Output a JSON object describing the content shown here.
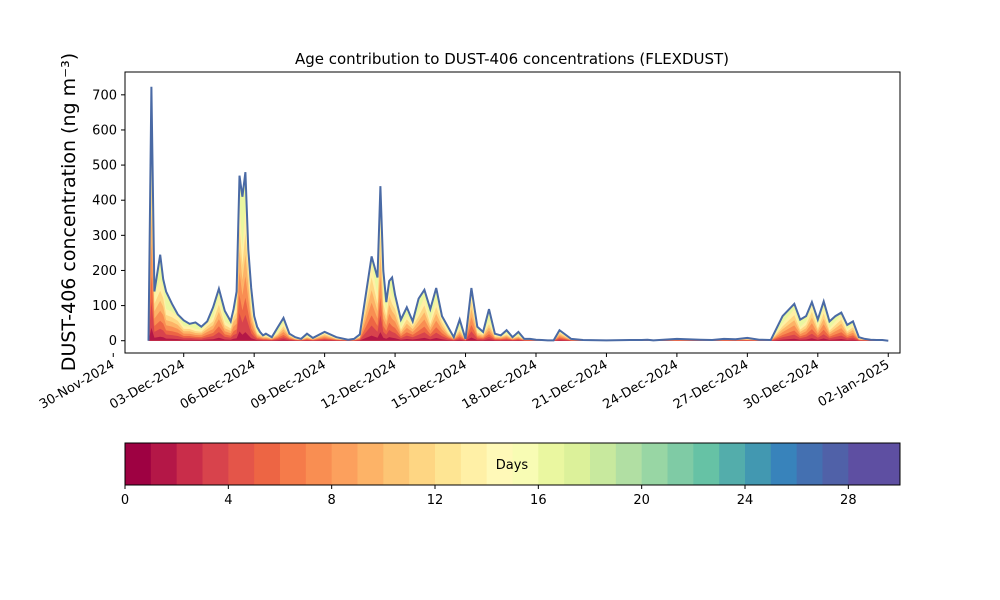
{
  "chart_data": {
    "type": "area",
    "title": "Age contribution to DUST-406 concentrations (FLEXDUST)",
    "ylabel": "DUST-406 concentration (ng m⁻³)",
    "xlabel": "",
    "ylim": [
      -35,
      765
    ],
    "xlim": [
      "2024-11-30T12:00",
      "2025-01-02T12:00"
    ],
    "x_ticks": [
      "30-Nov-2024",
      "03-Dec-2024",
      "06-Dec-2024",
      "09-Dec-2024",
      "12-Dec-2024",
      "15-Dec-2024",
      "18-Dec-2024",
      "21-Dec-2024",
      "24-Dec-2024",
      "27-Dec-2024",
      "30-Dec-2024",
      "02-Jan-2025"
    ],
    "y_ticks": [
      0,
      100,
      200,
      300,
      400,
      500,
      600,
      700
    ],
    "grid": false,
    "outline_color": "#4a6aa5",
    "total_series": {
      "x": [
        "2024-12-01T12:00",
        "2024-12-01T15:00",
        "2024-12-01T18:00",
        "2024-12-02T00:00",
        "2024-12-02T03:00",
        "2024-12-02T06:00",
        "2024-12-02T12:00",
        "2024-12-02T18:00",
        "2024-12-03T00:00",
        "2024-12-03T06:00",
        "2024-12-03T12:00",
        "2024-12-03T18:00",
        "2024-12-04T00:00",
        "2024-12-04T06:00",
        "2024-12-04T12:00",
        "2024-12-04T18:00",
        "2024-12-05T00:00",
        "2024-12-05T03:00",
        "2024-12-05T06:00",
        "2024-12-05T09:00",
        "2024-12-05T12:00",
        "2024-12-05T15:00",
        "2024-12-05T18:00",
        "2024-12-05T21:00",
        "2024-12-06T00:00",
        "2024-12-06T03:00",
        "2024-12-06T06:00",
        "2024-12-06T09:00",
        "2024-12-06T12:00",
        "2024-12-06T18:00",
        "2024-12-07T00:00",
        "2024-12-07T06:00",
        "2024-12-07T12:00",
        "2024-12-07T18:00",
        "2024-12-08T00:00",
        "2024-12-08T06:00",
        "2024-12-08T12:00",
        "2024-12-09T00:00",
        "2024-12-09T12:00",
        "2024-12-10T00:00",
        "2024-12-10T06:00",
        "2024-12-10T12:00",
        "2024-12-11T00:00",
        "2024-12-11T06:00",
        "2024-12-11T09:00",
        "2024-12-11T12:00",
        "2024-12-11T15:00",
        "2024-12-11T18:00",
        "2024-12-11T21:00",
        "2024-12-12T00:00",
        "2024-12-12T06:00",
        "2024-12-12T12:00",
        "2024-12-12T18:00",
        "2024-12-13T00:00",
        "2024-12-13T06:00",
        "2024-12-13T12:00",
        "2024-12-13T18:00",
        "2024-12-14T00:00",
        "2024-12-14T06:00",
        "2024-12-14T12:00",
        "2024-12-14T18:00",
        "2024-12-15T00:00",
        "2024-12-15T06:00",
        "2024-12-15T12:00",
        "2024-12-15T18:00",
        "2024-12-16T00:00",
        "2024-12-16T06:00",
        "2024-12-16T12:00",
        "2024-12-16T18:00",
        "2024-12-17T00:00",
        "2024-12-17T06:00",
        "2024-12-17T12:00",
        "2024-12-17T18:00",
        "2024-12-18T00:00",
        "2024-12-18T06:00",
        "2024-12-18T12:00",
        "2024-12-18T18:00",
        "2024-12-19T00:00",
        "2024-12-19T12:00",
        "2024-12-20T00:00",
        "2024-12-21T00:00",
        "2024-12-22T00:00",
        "2024-12-22T12:00",
        "2024-12-22T18:00",
        "2024-12-23T00:00",
        "2024-12-24T00:00",
        "2024-12-25T00:00",
        "2024-12-25T12:00",
        "2024-12-26T00:00",
        "2024-12-26T12:00",
        "2024-12-27T00:00",
        "2024-12-27T12:00",
        "2024-12-28T00:00",
        "2024-12-28T12:00",
        "2024-12-29T00:00",
        "2024-12-29T06:00",
        "2024-12-29T12:00",
        "2024-12-29T18:00",
        "2024-12-30T00:00",
        "2024-12-30T06:00",
        "2024-12-30T12:00",
        "2024-12-30T18:00",
        "2024-12-31T00:00",
        "2024-12-31T06:00",
        "2024-12-31T12:00",
        "2024-12-31T18:00",
        "2025-01-01T00:00",
        "2025-01-01T06:00",
        "2025-01-01T12:00",
        "2025-01-01T18:00",
        "2025-01-02T00:00"
      ],
      "values": [
        0,
        723,
        140,
        245,
        175,
        140,
        105,
        75,
        58,
        48,
        52,
        40,
        55,
        95,
        148,
        85,
        55,
        90,
        140,
        470,
        410,
        480,
        260,
        150,
        70,
        40,
        25,
        15,
        20,
        10,
        38,
        65,
        20,
        10,
        5,
        20,
        8,
        25,
        10,
        3,
        5,
        18,
        240,
        180,
        440,
        200,
        110,
        170,
        180,
        130,
        60,
        95,
        55,
        120,
        145,
        90,
        150,
        70,
        40,
        10,
        60,
        5,
        150,
        40,
        25,
        90,
        20,
        15,
        30,
        10,
        25,
        5,
        5,
        3,
        2,
        1,
        1,
        30,
        5,
        2,
        1,
        2,
        2,
        3,
        1,
        5,
        3,
        2,
        5,
        4,
        8,
        3,
        2,
        70,
        105,
        60,
        70,
        110,
        60,
        112,
        55,
        70,
        80,
        45,
        55,
        10,
        5,
        3,
        2,
        2,
        0
      ]
    },
    "layers_note": "Stacked age classes from 0 to 30 days; each band colored by the colorbar.",
    "colorbar": {
      "label": "Days",
      "vmin": 0,
      "vmax": 30,
      "n_colors": 30,
      "ticks": [
        0,
        4,
        8,
        12,
        16,
        20,
        24,
        28
      ],
      "colors": [
        "#9e0142",
        "#b41747",
        "#c92d4a",
        "#d8434c",
        "#e45549",
        "#ed6544",
        "#f57b4a",
        "#f98e52",
        "#fca05d",
        "#fdb367",
        "#fdc574",
        "#fed683",
        "#fee593",
        "#fff0a6",
        "#fff9b8",
        "#f8fcb4",
        "#eaf7a0",
        "#dcf19a",
        "#c8e99e",
        "#b1dfa3",
        "#98d6a4",
        "#7fcba5",
        "#66c2a5",
        "#53adab",
        "#4298b1",
        "#3883bb",
        "#4470b1",
        "#5061a8",
        "#5e4fa2",
        "#5e4fa2"
      ]
    }
  }
}
